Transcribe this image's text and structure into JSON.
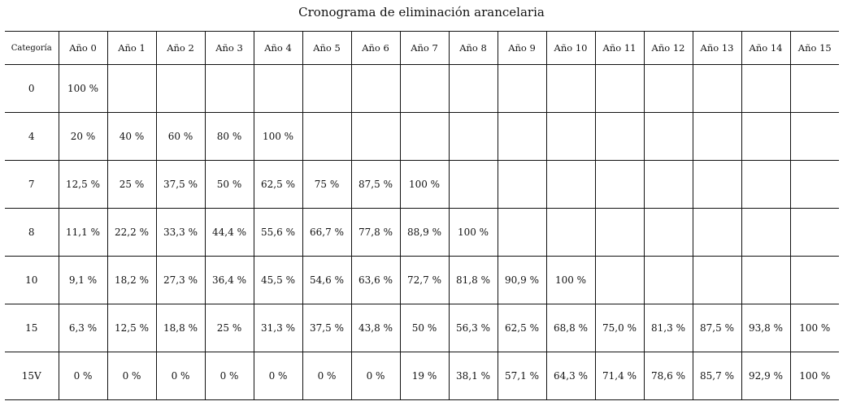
{
  "title": "Cronograma de eliminación arancelaria",
  "table": {
    "headers": [
      "Categoría",
      "Año 0",
      "Año 1",
      "Año 2",
      "Año 3",
      "Año 4",
      "Año 5",
      "Año 6",
      "Año 7",
      "Año 8",
      "Año 9",
      "Año 10",
      "Año 11",
      "Año 12",
      "Año 13",
      "Año 14",
      "Año 15"
    ],
    "rows": [
      {
        "category": "0",
        "cells": [
          "100 %",
          "",
          "",
          "",
          "",
          "",
          "",
          "",
          "",
          "",
          "",
          "",
          "",
          "",
          "",
          ""
        ]
      },
      {
        "category": "4",
        "cells": [
          "20 %",
          "40 %",
          "60 %",
          "80 %",
          "100 %",
          "",
          "",
          "",
          "",
          "",
          "",
          "",
          "",
          "",
          "",
          ""
        ]
      },
      {
        "category": "7",
        "cells": [
          "12,5 %",
          "25 %",
          "37,5 %",
          "50 %",
          "62,5 %",
          "75 %",
          "87,5 %",
          "100 %",
          "",
          "",
          "",
          "",
          "",
          "",
          "",
          ""
        ]
      },
      {
        "category": "8",
        "cells": [
          "11,1 %",
          "22,2 %",
          "33,3 %",
          "44,4 %",
          "55,6 %",
          "66,7 %",
          "77,8 %",
          "88,9 %",
          "100 %",
          "",
          "",
          "",
          "",
          "",
          "",
          ""
        ]
      },
      {
        "category": "10",
        "cells": [
          "9,1 %",
          "18,2 %",
          "27,3 %",
          "36,4 %",
          "45,5 %",
          "54,6 %",
          "63,6 %",
          "72,7 %",
          "81,8 %",
          "90,9 %",
          "100 %",
          "",
          "",
          "",
          "",
          ""
        ]
      },
      {
        "category": "15",
        "cells": [
          "6,3 %",
          "12,5 %",
          "18,8 %",
          "25 %",
          "31,3 %",
          "37,5 %",
          "43,8 %",
          "50 %",
          "56,3 %",
          "62,5 %",
          "68,8 %",
          "75,0 %",
          "81,3 %",
          "87,5 %",
          "93,8 %",
          "100 %"
        ]
      },
      {
        "category": "15V",
        "cells": [
          "0 %",
          "0 %",
          "0 %",
          "0 %",
          "0 %",
          "0 %",
          "0 %",
          "19 %",
          "38,1 %",
          "57,1 %",
          "64,3 %",
          "71,4 %",
          "78,6 %",
          "85,7 %",
          "92,9 %",
          "100 %"
        ]
      }
    ]
  }
}
